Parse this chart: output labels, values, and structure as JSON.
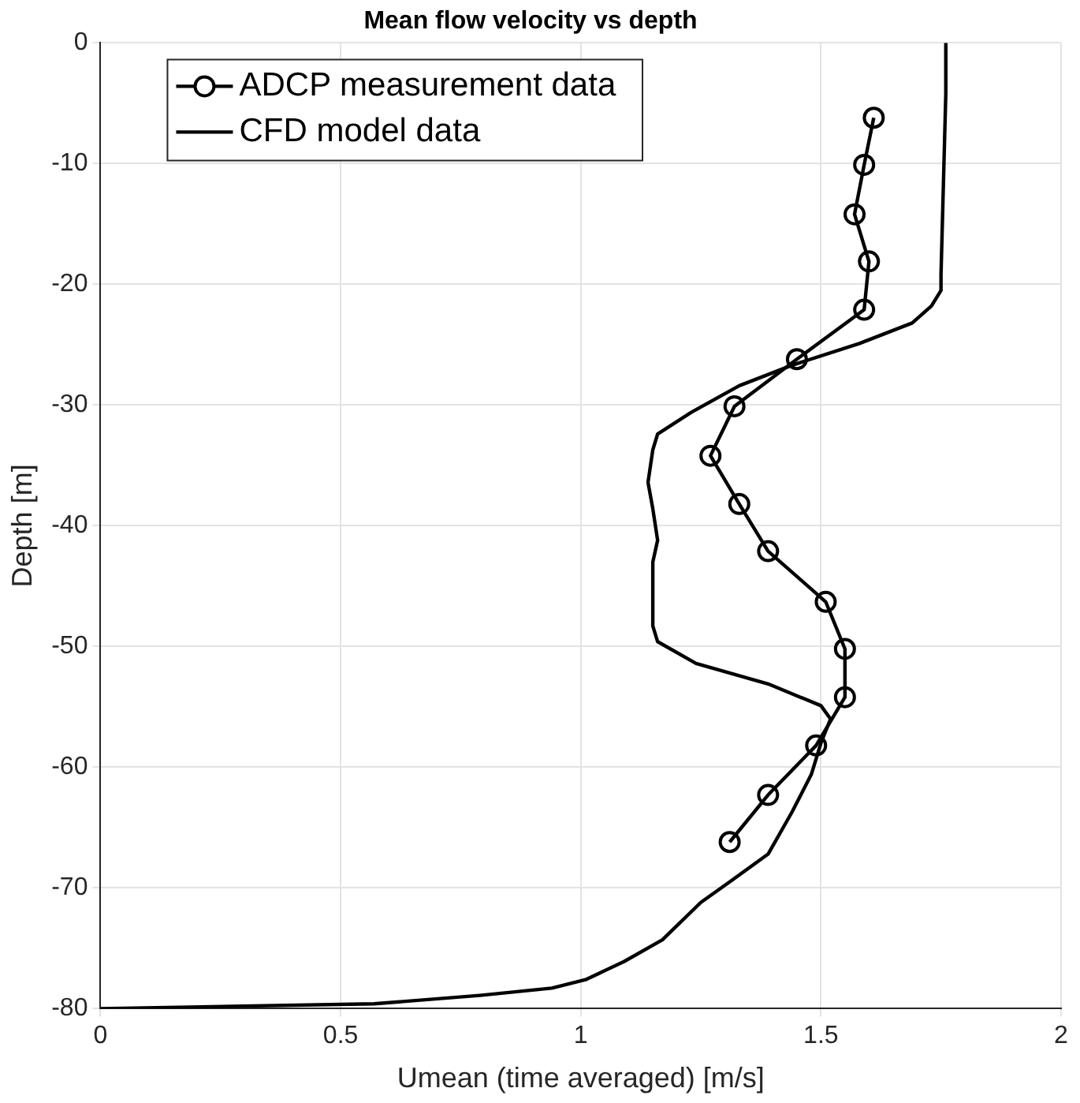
{
  "chart_data": {
    "type": "line",
    "title": "Mean flow velocity vs depth",
    "xlabel": "Umean (time averaged) [m/s]",
    "ylabel": "Depth [m]",
    "xlim": [
      0,
      2
    ],
    "xticks": [
      0,
      0.5,
      1,
      1.5,
      2
    ],
    "ylim": [
      -80,
      0
    ],
    "yticks": [
      -80,
      -70,
      -60,
      -50,
      -40,
      -30,
      -20,
      -10,
      0
    ],
    "grid": true,
    "legend": "top left",
    "series": [
      {
        "name": "ADCP measurement data",
        "color": "#000000",
        "marker": "circle",
        "x": [
          1.61,
          1.59,
          1.57,
          1.6,
          1.59,
          1.45,
          1.32,
          1.27,
          1.33,
          1.39,
          1.51,
          1.55,
          1.55,
          1.49,
          1.39,
          1.31
        ],
        "values": [
          -6.2,
          -10.1,
          -14.2,
          -18.1,
          -22.1,
          -26.2,
          -30.1,
          -34.2,
          -38.2,
          -42.1,
          -46.3,
          -50.2,
          -54.2,
          -58.2,
          -62.3,
          -66.2
        ]
      },
      {
        "name": "CFD model data",
        "color": "#000000",
        "marker": "none",
        "x": [
          1.76,
          1.76,
          1.75,
          1.75,
          1.73,
          1.69,
          1.58,
          1.44,
          1.33,
          1.23,
          1.16,
          1.15,
          1.14,
          1.15,
          1.16,
          1.15,
          1.15,
          1.16,
          1.24,
          1.39,
          1.5,
          1.52,
          1.5,
          1.48,
          1.44,
          1.39,
          1.31,
          1.25,
          1.17,
          1.09,
          1.01,
          0.94,
          0.79,
          0.57,
          0
        ],
        "values": [
          0,
          -4.2,
          -19.2,
          -20.5,
          -21.8,
          -23.2,
          -24.9,
          -26.7,
          -28.4,
          -30.6,
          -32.4,
          -33.7,
          -36.4,
          -38.6,
          -41.2,
          -43,
          -48.3,
          -49.6,
          -51.4,
          -53.1,
          -54.9,
          -56,
          -58,
          -60.6,
          -63.7,
          -67.2,
          -69.5,
          -71.2,
          -74.3,
          -76.1,
          -77.6,
          -78.3,
          -78.9,
          -79.6,
          -80
        ]
      }
    ]
  }
}
